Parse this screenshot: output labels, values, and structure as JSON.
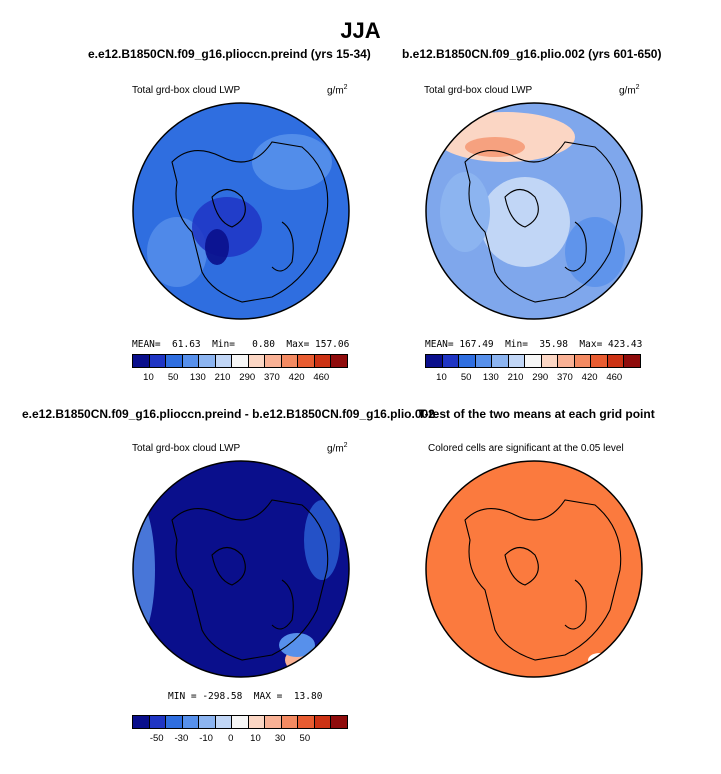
{
  "figure": {
    "title": "JJA"
  },
  "panels": {
    "top_left": {
      "case_title": "e.e12.B1850CN.f09_g16.pliocсn.preind (yrs 15-34)",
      "variable": "Total grd-box cloud LWP",
      "units": "g/m",
      "units_exp": "2",
      "stats": "MEAN=  61.63  Min=   0.80  Max= 157.06",
      "base_color": "#2f6ee0"
    },
    "top_right": {
      "case_title": "b.e12.B1850CN.f09_g16.plio.002 (yrs 601-650)",
      "variable": "Total grd-box cloud LWP",
      "units": "g/m",
      "units_exp": "2",
      "stats": "MEAN= 167.49  Min=  35.98  Max= 423.43",
      "base_color": "#7fa7ec"
    },
    "bottom_left": {
      "case_title": "e.e12.B1850CN.f09_g16.pliocсn.preind - b.e12.B1850CN.f09_g16.plio.002",
      "variable": "Total grd-box cloud LWP",
      "units": "g/m",
      "units_exp": "2",
      "stats": "MIN = -298.58  MAX =  13.80",
      "base_color": "#0a0f8c"
    },
    "bottom_right": {
      "case_title": "T-test of the two means at each grid point",
      "note": "Colored cells are significant at the 0.05 level",
      "base_color": "#fb7a3e"
    }
  },
  "colorbars": {
    "abs_colors": [
      "#0a0f8c",
      "#1f35c4",
      "#2f6ee0",
      "#5790eb",
      "#8cb4f0",
      "#c1d6f6",
      "#f6f6f6",
      "#fbd6c4",
      "#f9b195",
      "#f38a62",
      "#e85c31",
      "#cc3214",
      "#8f0c0c"
    ],
    "abs_ticks": [
      "10",
      "50",
      "130",
      "210",
      "290",
      "370",
      "420",
      "460"
    ],
    "diff_colors": [
      "#0a0f8c",
      "#1f35c4",
      "#2f6ee0",
      "#5790eb",
      "#8cb4f0",
      "#c1d6f6",
      "#f6f6f6",
      "#fbd6c4",
      "#f9b195",
      "#f38a62",
      "#e85c31",
      "#cc3214",
      "#8f0c0c"
    ],
    "diff_ticks": [
      "-50",
      "-30",
      "-10",
      "0",
      "10",
      "30",
      "50"
    ]
  }
}
